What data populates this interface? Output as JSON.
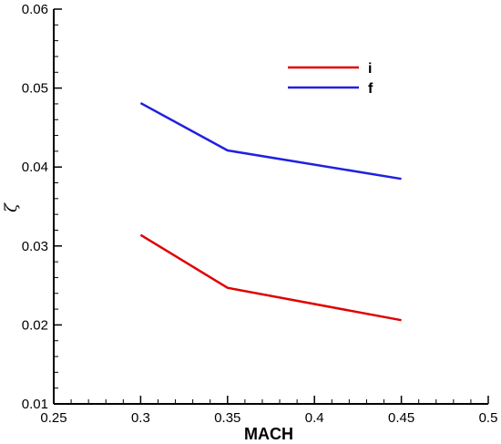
{
  "chart_data": {
    "type": "line",
    "xlabel": "MACH",
    "ylabel": "ζ",
    "xlim": [
      0.25,
      0.5
    ],
    "ylim": [
      0.01,
      0.06
    ],
    "xticks": [
      "0.25",
      "0.3",
      "0.35",
      "0.4",
      "0.45",
      "0.5"
    ],
    "yticks": [
      "0.01",
      "0.02",
      "0.03",
      "0.04",
      "0.05",
      "0.06"
    ],
    "x": [
      0.3,
      0.35,
      0.45
    ],
    "series": [
      {
        "name": "i",
        "color": "#e00000",
        "values": [
          0.0314,
          0.0247,
          0.0206
        ]
      },
      {
        "name": "f",
        "color": "#2020e0",
        "values": [
          0.0481,
          0.0421,
          0.0385
        ]
      }
    ],
    "legend": "top-right",
    "grid": false
  }
}
